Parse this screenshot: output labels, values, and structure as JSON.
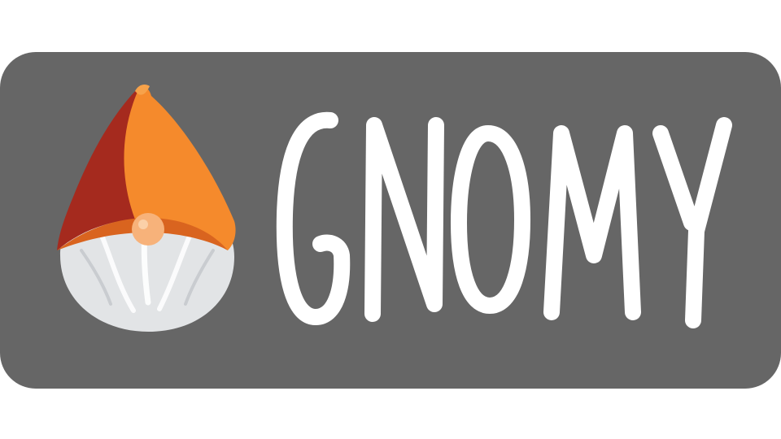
{
  "logo": {
    "brand_name": "GNOMY",
    "colors": {
      "page_background": "#ffffff",
      "banner_background": "#666666",
      "wordmark": "#ffffff",
      "hat_light": "#f58a2c",
      "hat_dark": "#a52a1e",
      "nose": "#f7b27a",
      "beard": "#e2e4e6"
    },
    "icons": [
      "gnome-icon"
    ]
  }
}
